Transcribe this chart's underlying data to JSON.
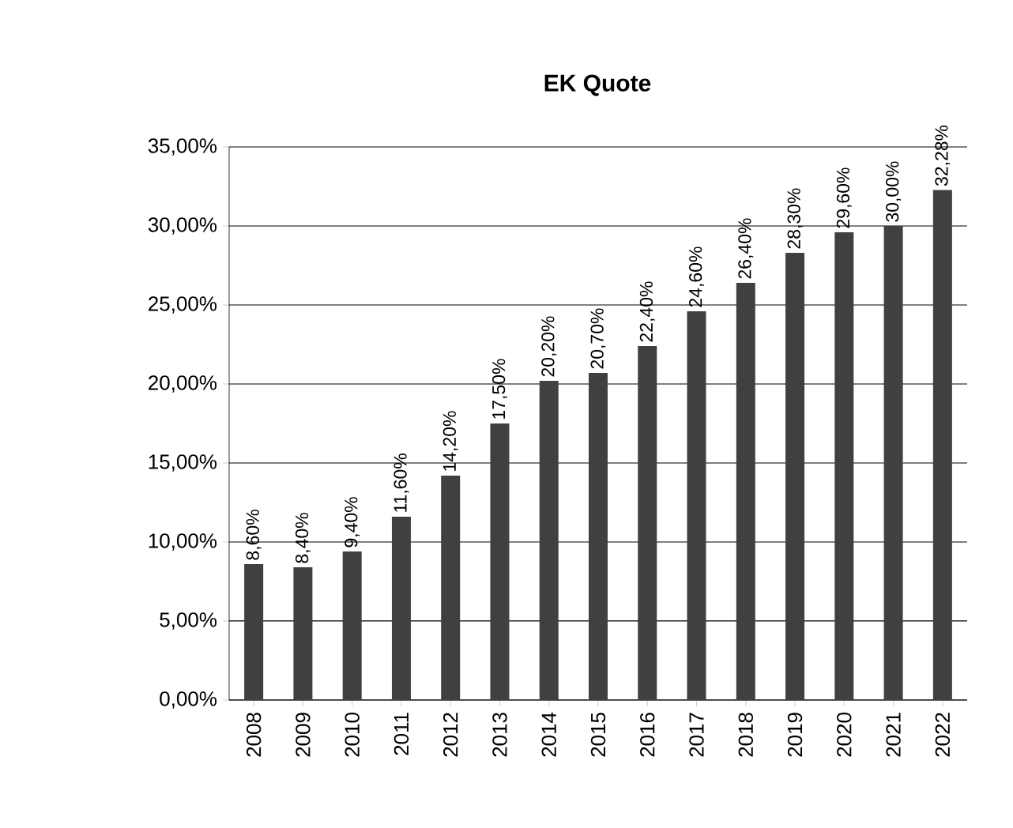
{
  "chart_data": {
    "type": "bar",
    "title": "EK Quote",
    "categories": [
      "2008",
      "2009",
      "2010",
      "2011",
      "2012",
      "2013",
      "2014",
      "2015",
      "2016",
      "2017",
      "2018",
      "2019",
      "2020",
      "2021",
      "2022"
    ],
    "values": [
      8.6,
      8.4,
      9.4,
      11.6,
      14.2,
      17.5,
      20.2,
      20.7,
      22.4,
      24.6,
      26.4,
      28.3,
      29.6,
      30.0,
      32.28
    ],
    "value_labels": [
      "8,60%",
      "8,40%",
      "9,40%",
      "11,60%",
      "14,20%",
      "17,50%",
      "20,20%",
      "20,70%",
      "22,40%",
      "24,60%",
      "26,40%",
      "28,30%",
      "29,60%",
      "30,00%",
      "32,28%"
    ],
    "color": "#404040",
    "ylim": [
      0,
      35
    ],
    "yticks": [
      {
        "value": 0,
        "label": "0,00%"
      },
      {
        "value": 5,
        "label": "5,00%"
      },
      {
        "value": 10,
        "label": "10,00%"
      },
      {
        "value": 15,
        "label": "15,00%"
      },
      {
        "value": 20,
        "label": "20,00%"
      },
      {
        "value": 25,
        "label": "25,00%"
      },
      {
        "value": 30,
        "label": "30,00%"
      },
      {
        "value": 35,
        "label": "35,00%"
      }
    ],
    "grid": "y"
  }
}
